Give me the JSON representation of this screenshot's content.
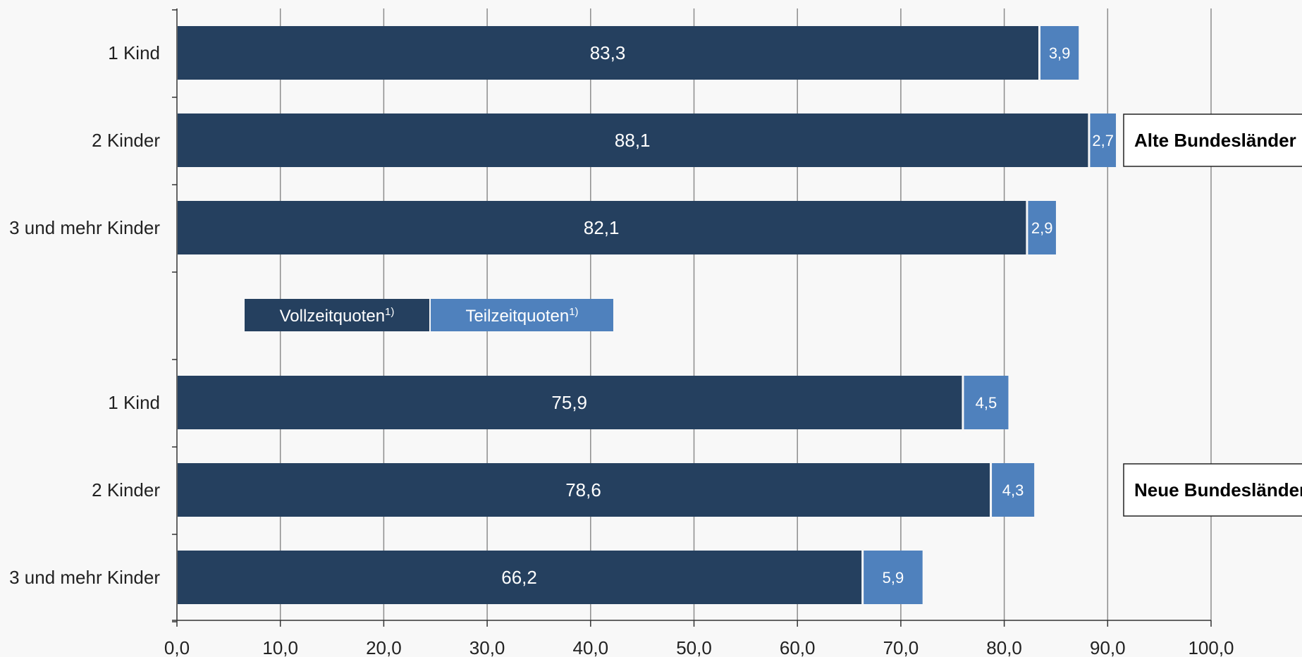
{
  "chart_data": {
    "type": "bar",
    "orientation": "horizontal",
    "stacked": true,
    "xlim": [
      0,
      100
    ],
    "x_ticks": [
      "0,0",
      "10,0",
      "20,0",
      "30,0",
      "40,0",
      "50,0",
      "60,0",
      "70,0",
      "80,0",
      "90,0",
      "100,0"
    ],
    "grid": true,
    "colors": {
      "full": "#25405f",
      "part": "#4f81bd",
      "background": "#f8f8f8"
    },
    "legend": {
      "placement": "center-left",
      "items": [
        {
          "key": "full",
          "label": "Vollzeitquoten",
          "sup": "1)"
        },
        {
          "key": "part",
          "label": "Teilzeitquoten",
          "sup": "1)"
        }
      ]
    },
    "groups": [
      {
        "label": "Alte Bundesländer",
        "bars": [
          {
            "category": "1 Kind",
            "full": 83.3,
            "full_label": "83,3",
            "part": 3.9,
            "part_label": "3,9"
          },
          {
            "category": "2 Kinder",
            "full": 88.1,
            "full_label": "88,1",
            "part": 2.7,
            "part_label": "2,7"
          },
          {
            "category": "3 und mehr Kinder",
            "full": 82.1,
            "full_label": "82,1",
            "part": 2.9,
            "part_label": "2,9"
          }
        ]
      },
      {
        "label": "Neue Bundesländer",
        "bars": [
          {
            "category": "1 Kind",
            "full": 75.9,
            "full_label": "75,9",
            "part": 4.5,
            "part_label": "4,5"
          },
          {
            "category": "2 Kinder",
            "full": 78.6,
            "full_label": "78,6",
            "part": 4.3,
            "part_label": "4,3"
          },
          {
            "category": "3 und mehr Kinder",
            "full": 66.2,
            "full_label": "66,2",
            "part": 5.9,
            "part_label": "5,9"
          }
        ]
      }
    ]
  }
}
